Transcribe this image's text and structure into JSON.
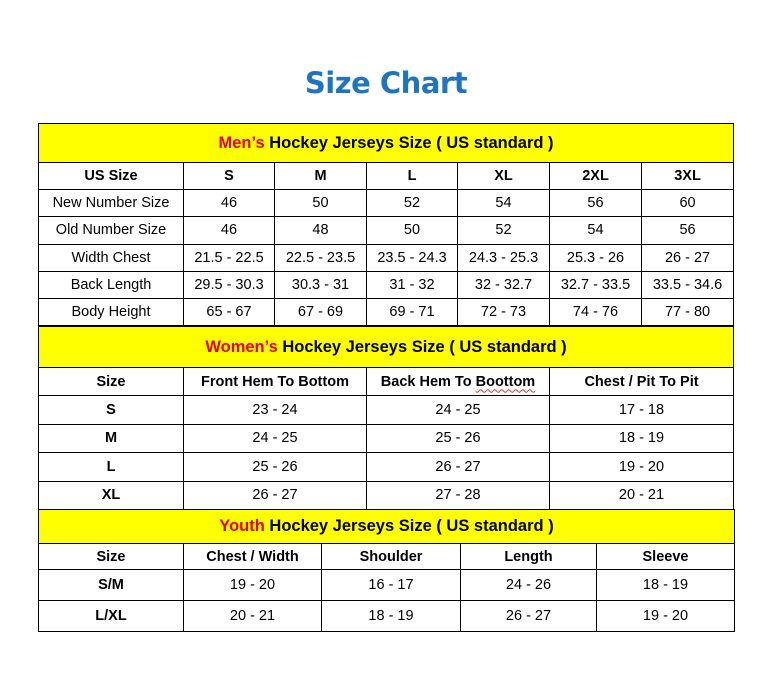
{
  "title": "Size Chart",
  "colors": {
    "title": "#1f74c0",
    "header_bg": "#ffff00",
    "accent_text": "#e8000b"
  },
  "men": {
    "heading_accent": "Men’s",
    "heading_rest": " Hockey Jerseys Size ( US standard )",
    "columns": [
      "US Size",
      "S",
      "M",
      "L",
      "XL",
      "2XL",
      "3XL"
    ],
    "rows": [
      [
        "New Number Size",
        "46",
        "50",
        "52",
        "54",
        "56",
        "60"
      ],
      [
        "Old Number Size",
        "46",
        "48",
        "50",
        "52",
        "54",
        "56"
      ],
      [
        "Width Chest",
        "21.5 - 22.5",
        "22.5 - 23.5",
        "23.5 - 24.3",
        "24.3 - 25.3",
        "25.3 - 26",
        "26 - 27"
      ],
      [
        "Back Length",
        "29.5 - 30.3",
        "30.3 - 31",
        "31 - 32",
        "32 - 32.7",
        "32.7 - 33.5",
        "33.5 - 34.6"
      ],
      [
        "Body Height",
        "65 - 67",
        "67 - 69",
        "69 - 71",
        "72 - 73",
        "74 - 76",
        "77 - 80"
      ]
    ]
  },
  "women": {
    "heading_accent": "Women’s",
    "heading_rest": " Hockey Jerseys Size ( US standard )",
    "columns": [
      "Size",
      "Front Hem To Bottom",
      "Back Hem To Boottom",
      "Chest / Pit To Pit"
    ],
    "rows": [
      [
        "S",
        "23 - 24",
        "24 - 25",
        "17 - 18"
      ],
      [
        "M",
        "24 - 25",
        "25 - 26",
        "18 - 19"
      ],
      [
        "L",
        "25 - 26",
        "26 - 27",
        "19 - 20"
      ],
      [
        "XL",
        "26 - 27",
        "27 - 28",
        "20 - 21"
      ]
    ]
  },
  "youth": {
    "heading_accent": "Youth",
    "heading_rest": " Hockey Jerseys Size ( US standard )",
    "columns": [
      "Size",
      "Chest / Width",
      "Shoulder",
      "Length",
      "Sleeve"
    ],
    "rows": [
      [
        "S/M",
        "19 - 20",
        "16 - 17",
        "24 - 26",
        "18 - 19"
      ],
      [
        "L/XL",
        "20 - 21",
        "18 - 19",
        "26 - 27",
        "19 - 20"
      ]
    ]
  }
}
